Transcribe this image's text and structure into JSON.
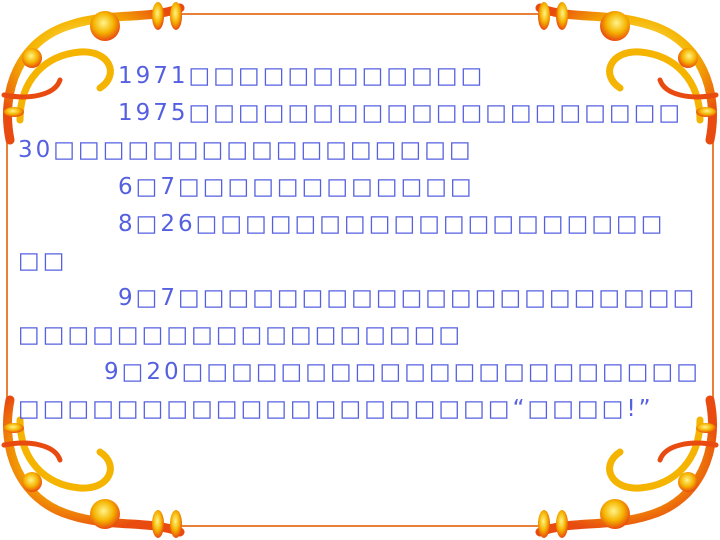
{
  "slide": {
    "paragraphs": [
      {
        "lines": [
          "1971□□□□□□□□□□□□"
        ]
      },
      {
        "lines": [
          "1975□□□□□□□□□□□□□□□□□□□□",
          "30□□□□□□□□□□□□□□□□□"
        ]
      },
      {
        "lines": [
          "6□7□□□□□□□□□□□□"
        ]
      },
      {
        "lines": [
          "8□26□□□□□□□□□□□□□□□□□□□",
          "□□"
        ]
      },
      {
        "lines": [
          "9□7□□□□□□□□□□□□□□□□□□□□□",
          "□□□□□□□□□□□□□□□□□□"
        ]
      },
      {
        "lines": [
          "9□20□□□□□□□□□□□□□□□□□□□□□",
          "□□□□□□□□□□□□□□□□□□□□“□□□□!”"
        ]
      }
    ]
  },
  "colors": {
    "text": "#5560e0",
    "frame": "#e8803a",
    "ornament_gold": "#f5b400",
    "ornament_red": "#e84a10"
  }
}
